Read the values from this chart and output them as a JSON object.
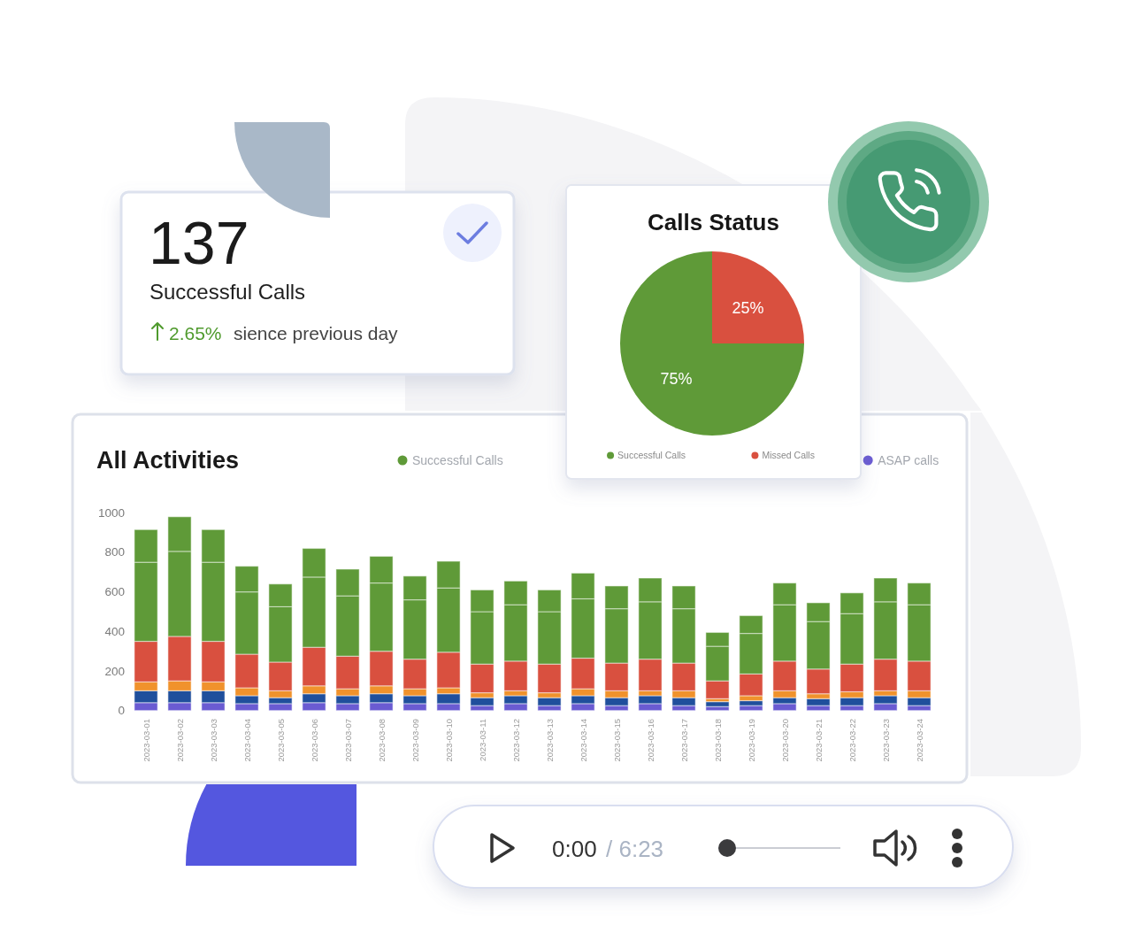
{
  "chart_data": [
    {
      "type": "other",
      "title": "137",
      "subtitle": "Successful Calls",
      "annotations": [
        "2.65%",
        "sience previous day"
      ]
    },
    {
      "type": "pie",
      "title": "Calls Status",
      "categories": [
        "Successful Calls",
        "Missed Calls"
      ],
      "values": [
        75,
        25
      ],
      "colors": [
        "#5f9a38",
        "#d9503f"
      ],
      "value_labels": [
        "75%",
        "25%"
      ],
      "legend": "bottom"
    },
    {
      "type": "bar",
      "title": "All Activities",
      "categories": [
        "2023-03-01",
        "2023-03-02",
        "2023-03-03",
        "2023-03-04",
        "2023-03-05",
        "2023-03-06",
        "2023-03-07",
        "2023-03-08",
        "2023-03-09",
        "2023-03-10",
        "2023-03-11",
        "2023-03-12",
        "2023-03-13",
        "2023-03-14",
        "2023-03-15",
        "2023-03-16",
        "2023-03-17",
        "2023-03-18",
        "2023-03-19",
        "2023-03-20",
        "2023-03-21",
        "2023-03-22",
        "2023-03-23",
        "2023-03-24"
      ],
      "stacked": true,
      "series": [
        {
          "name": "ASAP calls",
          "color": "#6a5bd2",
          "values": [
            40,
            40,
            40,
            35,
            35,
            40,
            35,
            40,
            35,
            35,
            25,
            35,
            25,
            35,
            25,
            35,
            25,
            20,
            25,
            35,
            25,
            25,
            35,
            25
          ]
        },
        {
          "color": "#1f4f9c",
          "values": [
            60,
            60,
            60,
            40,
            30,
            45,
            40,
            45,
            40,
            50,
            40,
            40,
            40,
            40,
            40,
            40,
            40,
            25,
            25,
            30,
            35,
            40,
            40,
            40
          ]
        },
        {
          "color": "#f0922c",
          "values": [
            45,
            50,
            45,
            40,
            35,
            40,
            35,
            40,
            35,
            30,
            25,
            25,
            25,
            35,
            35,
            25,
            35,
            15,
            25,
            35,
            25,
            30,
            25,
            35
          ]
        },
        {
          "color": "#d9503f",
          "values": [
            205,
            225,
            205,
            170,
            145,
            195,
            165,
            175,
            150,
            180,
            145,
            150,
            145,
            155,
            140,
            160,
            140,
            90,
            110,
            150,
            125,
            140,
            160,
            150
          ]
        },
        {
          "color": "#5f9a38",
          "values": [
            400,
            430,
            400,
            315,
            280,
            355,
            305,
            345,
            300,
            325,
            265,
            285,
            265,
            300,
            275,
            290,
            275,
            175,
            205,
            285,
            240,
            255,
            290,
            285
          ]
        },
        {
          "name": "Successful Calls",
          "color": "#5f9a38",
          "values": [
            165,
            175,
            165,
            130,
            115,
            145,
            135,
            135,
            120,
            135,
            110,
            120,
            110,
            130,
            115,
            120,
            115,
            70,
            90,
            110,
            95,
            105,
            120,
            110
          ]
        }
      ],
      "ylim": [
        0,
        1000
      ],
      "yticks": [
        0,
        200,
        400,
        600,
        800,
        1000
      ],
      "legend": "top right"
    },
    {
      "type": "other",
      "annotations": [
        "0:00",
        "/ 6:23"
      ]
    }
  ]
}
